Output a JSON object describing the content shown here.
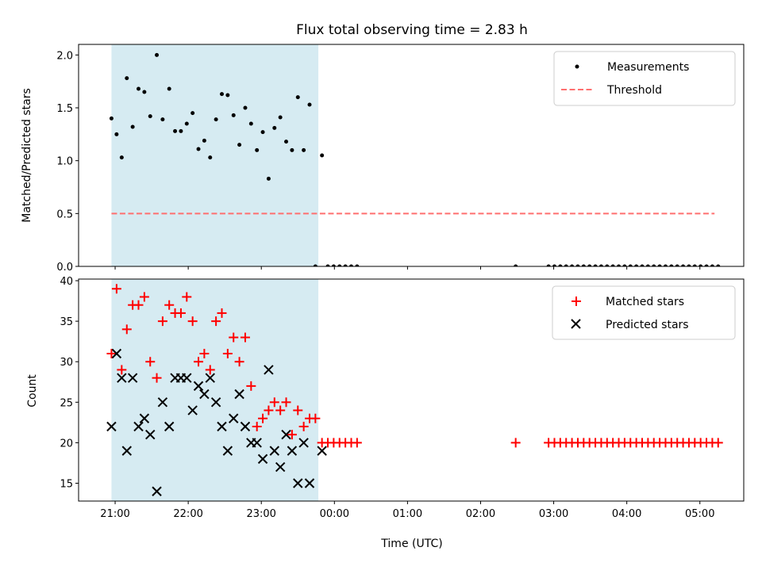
{
  "chart_data": {
    "type": "scatter",
    "title": "Flux total observing time = 2.83 h",
    "xlabel": "Time (UTC)",
    "x_tick_labels": [
      "21:00",
      "22:00",
      "23:00",
      "00:00",
      "01:00",
      "02:00",
      "03:00",
      "04:00",
      "05:00"
    ],
    "x_ticks_hours": [
      0,
      1,
      2,
      3,
      4,
      5,
      6,
      7,
      8
    ],
    "xlim_hours": [
      -0.5,
      8.6
    ],
    "x_origin": "21:00",
    "shaded_span_hours": [
      -0.05,
      2.78
    ],
    "shaded_color": "#add8e6",
    "panels": [
      {
        "ylabel": "Matched/Predicted stars",
        "ylim": [
          0,
          2.1
        ],
        "yticks": [
          0.0,
          0.5,
          1.0,
          1.5,
          2.0
        ],
        "ytick_labels": [
          "0.0",
          "0.5",
          "1.0",
          "1.5",
          "2.0"
        ],
        "threshold": {
          "value": 0.5,
          "x_start": -0.05,
          "x_end": 8.2,
          "color": "#ff6f6f"
        },
        "legend": {
          "placement": "upper right",
          "entries": [
            "Measurements",
            "Threshold"
          ]
        },
        "series": [
          {
            "name": "Measurements",
            "marker": "dot",
            "color": "#000000",
            "points": [
              [
                -0.05,
                1.4
              ],
              [
                0.02,
                1.25
              ],
              [
                0.09,
                1.03
              ],
              [
                0.16,
                1.78
              ],
              [
                0.24,
                1.32
              ],
              [
                0.32,
                1.68
              ],
              [
                0.4,
                1.65
              ],
              [
                0.48,
                1.42
              ],
              [
                0.57,
                2.0
              ],
              [
                0.65,
                1.39
              ],
              [
                0.74,
                1.68
              ],
              [
                0.82,
                1.28
              ],
              [
                0.9,
                1.28
              ],
              [
                0.98,
                1.35
              ],
              [
                1.06,
                1.45
              ],
              [
                1.14,
                1.11
              ],
              [
                1.22,
                1.19
              ],
              [
                1.3,
                1.03
              ],
              [
                1.38,
                1.39
              ],
              [
                1.46,
                1.63
              ],
              [
                1.54,
                1.62
              ],
              [
                1.62,
                1.43
              ],
              [
                1.7,
                1.15
              ],
              [
                1.78,
                1.5
              ],
              [
                1.86,
                1.35
              ],
              [
                1.94,
                1.1
              ],
              [
                2.02,
                1.27
              ],
              [
                2.1,
                0.83
              ],
              [
                2.18,
                1.31
              ],
              [
                2.26,
                1.41
              ],
              [
                2.34,
                1.18
              ],
              [
                2.42,
                1.1
              ],
              [
                2.5,
                1.6
              ],
              [
                2.58,
                1.1
              ],
              [
                2.66,
                1.53
              ],
              [
                2.83,
                1.05
              ],
              [
                2.74,
                0.0
              ],
              [
                2.91,
                0.0
              ],
              [
                2.99,
                0.0
              ],
              [
                3.07,
                0.0
              ],
              [
                3.15,
                0.0
              ],
              [
                3.23,
                0.0
              ],
              [
                3.31,
                0.0
              ],
              [
                5.48,
                0.0
              ],
              [
                5.93,
                0.0
              ],
              [
                6.01,
                0.0
              ],
              [
                6.09,
                0.0
              ],
              [
                6.17,
                0.0
              ],
              [
                6.25,
                0.0
              ],
              [
                6.33,
                0.0
              ],
              [
                6.41,
                0.0
              ],
              [
                6.49,
                0.0
              ],
              [
                6.57,
                0.0
              ],
              [
                6.65,
                0.0
              ],
              [
                6.73,
                0.0
              ],
              [
                6.81,
                0.0
              ],
              [
                6.89,
                0.0
              ],
              [
                6.97,
                0.0
              ],
              [
                7.05,
                0.0
              ],
              [
                7.13,
                0.0
              ],
              [
                7.21,
                0.0
              ],
              [
                7.29,
                0.0
              ],
              [
                7.37,
                0.0
              ],
              [
                7.45,
                0.0
              ],
              [
                7.53,
                0.0
              ],
              [
                7.61,
                0.0
              ],
              [
                7.69,
                0.0
              ],
              [
                7.77,
                0.0
              ],
              [
                7.85,
                0.0
              ],
              [
                7.93,
                0.0
              ],
              [
                8.01,
                0.0
              ],
              [
                8.09,
                0.0
              ],
              [
                8.17,
                0.0
              ],
              [
                8.25,
                0.0
              ]
            ]
          }
        ]
      },
      {
        "ylabel": "Count",
        "ylim": [
          12.8,
          40.2
        ],
        "yticks": [
          15,
          20,
          25,
          30,
          35,
          40
        ],
        "ytick_labels": [
          "15",
          "20",
          "25",
          "30",
          "35",
          "40"
        ],
        "legend": {
          "placement": "upper right",
          "entries": [
            "Matched stars",
            "Predicted stars"
          ]
        },
        "series": [
          {
            "name": "Matched stars",
            "marker": "plus",
            "color": "#ff0000",
            "points": [
              [
                -0.05,
                31
              ],
              [
                0.02,
                39
              ],
              [
                0.09,
                29
              ],
              [
                0.16,
                34
              ],
              [
                0.24,
                37
              ],
              [
                0.32,
                37
              ],
              [
                0.4,
                38
              ],
              [
                0.48,
                30
              ],
              [
                0.57,
                28
              ],
              [
                0.65,
                35
              ],
              [
                0.74,
                37
              ],
              [
                0.82,
                36
              ],
              [
                0.9,
                36
              ],
              [
                0.98,
                38
              ],
              [
                1.06,
                35
              ],
              [
                1.14,
                30
              ],
              [
                1.22,
                31
              ],
              [
                1.3,
                29
              ],
              [
                1.38,
                35
              ],
              [
                1.46,
                36
              ],
              [
                1.54,
                31
              ],
              [
                1.62,
                33
              ],
              [
                1.7,
                30
              ],
              [
                1.78,
                33
              ],
              [
                1.86,
                27
              ],
              [
                1.94,
                22
              ],
              [
                2.02,
                23
              ],
              [
                2.1,
                24
              ],
              [
                2.18,
                25
              ],
              [
                2.26,
                24
              ],
              [
                2.34,
                25
              ],
              [
                2.42,
                21
              ],
              [
                2.5,
                24
              ],
              [
                2.58,
                22
              ],
              [
                2.66,
                23
              ],
              [
                2.74,
                23
              ],
              [
                2.83,
                20
              ],
              [
                2.91,
                20
              ],
              [
                2.99,
                20
              ],
              [
                3.07,
                20
              ],
              [
                3.15,
                20
              ],
              [
                3.23,
                20
              ],
              [
                3.31,
                20
              ],
              [
                5.48,
                20
              ],
              [
                5.93,
                20
              ],
              [
                6.01,
                20
              ],
              [
                6.09,
                20
              ],
              [
                6.17,
                20
              ],
              [
                6.25,
                20
              ],
              [
                6.33,
                20
              ],
              [
                6.41,
                20
              ],
              [
                6.49,
                20
              ],
              [
                6.57,
                20
              ],
              [
                6.65,
                20
              ],
              [
                6.73,
                20
              ],
              [
                6.81,
                20
              ],
              [
                6.89,
                20
              ],
              [
                6.97,
                20
              ],
              [
                7.05,
                20
              ],
              [
                7.13,
                20
              ],
              [
                7.21,
                20
              ],
              [
                7.29,
                20
              ],
              [
                7.37,
                20
              ],
              [
                7.45,
                20
              ],
              [
                7.53,
                20
              ],
              [
                7.61,
                20
              ],
              [
                7.69,
                20
              ],
              [
                7.77,
                20
              ],
              [
                7.85,
                20
              ],
              [
                7.93,
                20
              ],
              [
                8.01,
                20
              ],
              [
                8.09,
                20
              ],
              [
                8.17,
                20
              ],
              [
                8.25,
                20
              ]
            ]
          },
          {
            "name": "Predicted stars",
            "marker": "x",
            "color": "#000000",
            "points": [
              [
                -0.05,
                22
              ],
              [
                0.02,
                31
              ],
              [
                0.09,
                28
              ],
              [
                0.16,
                19
              ],
              [
                0.24,
                28
              ],
              [
                0.32,
                22
              ],
              [
                0.4,
                23
              ],
              [
                0.48,
                21
              ],
              [
                0.57,
                14
              ],
              [
                0.65,
                25
              ],
              [
                0.74,
                22
              ],
              [
                0.82,
                28
              ],
              [
                0.9,
                28
              ],
              [
                0.98,
                28
              ],
              [
                1.06,
                24
              ],
              [
                1.14,
                27
              ],
              [
                1.22,
                26
              ],
              [
                1.3,
                28
              ],
              [
                1.38,
                25
              ],
              [
                1.46,
                22
              ],
              [
                1.54,
                19
              ],
              [
                1.62,
                23
              ],
              [
                1.7,
                26
              ],
              [
                1.78,
                22
              ],
              [
                1.86,
                20
              ],
              [
                1.94,
                20
              ],
              [
                2.02,
                18
              ],
              [
                2.1,
                29
              ],
              [
                2.18,
                19
              ],
              [
                2.26,
                17
              ],
              [
                2.34,
                21
              ],
              [
                2.42,
                19
              ],
              [
                2.5,
                15
              ],
              [
                2.58,
                20
              ],
              [
                2.66,
                15
              ],
              [
                2.83,
                19
              ]
            ]
          }
        ]
      }
    ]
  }
}
